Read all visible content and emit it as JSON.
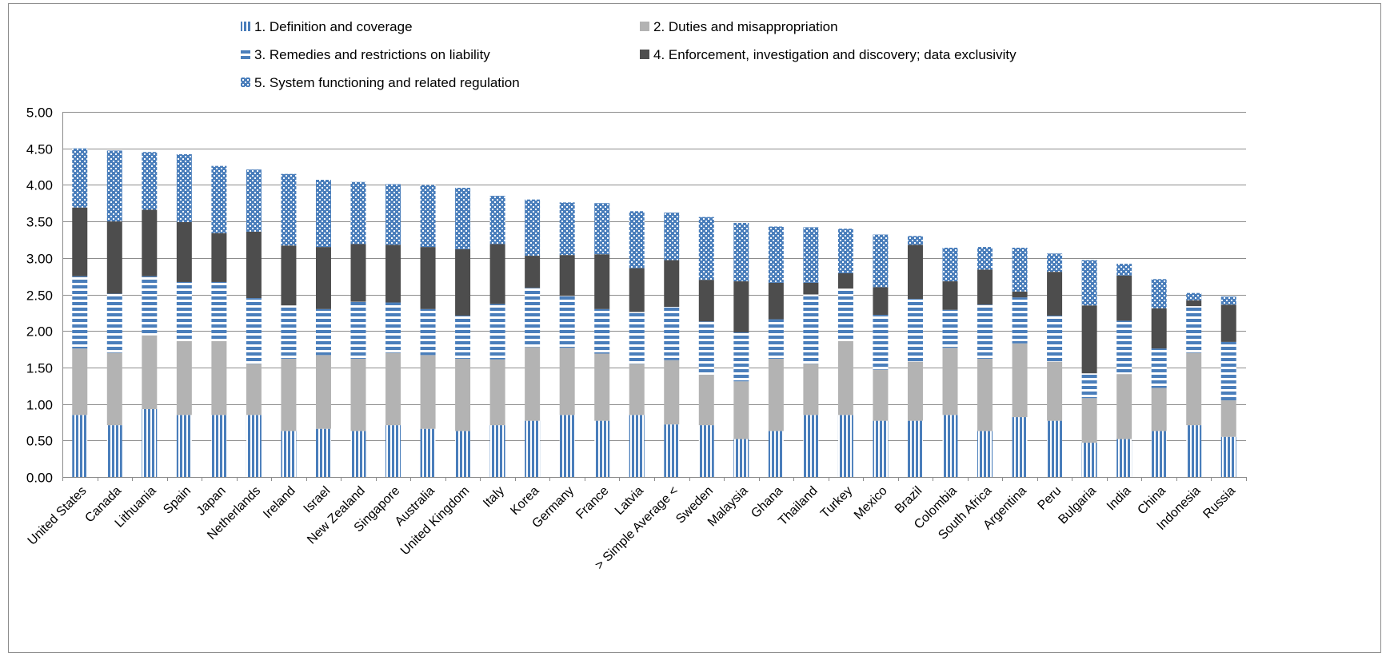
{
  "chart_data": {
    "type": "bar",
    "stacked": true,
    "ylim": [
      0,
      5
    ],
    "yticks": [
      "0.00",
      "0.50",
      "1.00",
      "1.50",
      "2.00",
      "2.50",
      "3.00",
      "3.50",
      "4.00",
      "4.50",
      "5.00"
    ],
    "grid": true,
    "legend_position": "top",
    "categories": [
      "United States",
      "Canada",
      "Lithuania",
      "Spain",
      "Japan",
      "Netherlands",
      "Ireland",
      "Israel",
      "New Zealand",
      "Singapore",
      "Australia",
      "United Kingdom",
      "Italy",
      "Korea",
      "Germany",
      "France",
      "Latvia",
      "> Simple Average <",
      "Sweden",
      "Malaysia",
      "Ghana",
      "Thailand",
      "Turkey",
      "Mexico",
      "Brazil",
      "Colombia",
      "South Africa",
      "Argentina",
      "Peru",
      "Bulgaria",
      "India",
      "China",
      "Indonesia",
      "Russia"
    ],
    "series": [
      {
        "name": "1. Definition and coverage",
        "color": "#4a7ebb",
        "pattern": "vertical",
        "values": [
          0.85,
          0.71,
          0.93,
          0.85,
          0.85,
          0.85,
          0.63,
          0.66,
          0.63,
          0.71,
          0.66,
          0.63,
          0.71,
          0.77,
          0.85,
          0.77,
          0.85,
          0.72,
          0.71,
          0.52,
          0.63,
          0.85,
          0.85,
          0.77,
          0.77,
          0.85,
          0.63,
          0.82,
          0.77,
          0.47,
          0.52,
          0.63,
          0.71,
          0.55
        ]
      },
      {
        "name": "2. Duties and misappropriation",
        "color": "#b3b3b3",
        "pattern": "solid",
        "values": [
          0.91,
          0.99,
          1.01,
          1.01,
          1.01,
          0.7,
          0.99,
          1.01,
          0.99,
          0.99,
          1.01,
          0.99,
          0.9,
          1.01,
          0.92,
          0.92,
          0.7,
          0.88,
          0.69,
          0.79,
          0.99,
          0.7,
          1.01,
          0.7,
          0.81,
          0.92,
          0.99,
          1.01,
          0.81,
          0.61,
          0.89,
          0.59,
          0.99,
          0.5
        ]
      },
      {
        "name": "3. Remedies and restrictions on liability",
        "color": "#4a7ebb",
        "pattern": "horizontal",
        "values": [
          0.99,
          0.81,
          0.81,
          0.81,
          0.81,
          0.9,
          0.73,
          0.63,
          0.78,
          0.69,
          0.63,
          0.59,
          0.76,
          0.81,
          0.71,
          0.61,
          0.71,
          0.73,
          0.73,
          0.67,
          0.54,
          0.95,
          0.72,
          0.75,
          0.86,
          0.52,
          0.74,
          0.63,
          0.63,
          0.34,
          0.73,
          0.54,
          0.64,
          0.8
        ]
      },
      {
        "name": "4. Enforcement, investigation and discovery; data exclusivity",
        "color": "#4d4d4d",
        "pattern": "solid",
        "values": [
          0.94,
          0.99,
          0.91,
          0.82,
          0.67,
          0.91,
          0.82,
          0.85,
          0.79,
          0.79,
          0.85,
          0.91,
          0.82,
          0.44,
          0.56,
          0.75,
          0.6,
          0.64,
          0.57,
          0.7,
          0.5,
          0.16,
          0.21,
          0.38,
          0.74,
          0.39,
          0.48,
          0.08,
          0.6,
          0.93,
          0.62,
          0.55,
          0.08,
          0.51
        ]
      },
      {
        "name": "5. System functioning and related regulation",
        "color": "#4a7ebb",
        "pattern": "dots",
        "values": [
          0.81,
          0.97,
          0.79,
          0.93,
          0.92,
          0.85,
          0.98,
          0.92,
          0.85,
          0.83,
          0.85,
          0.84,
          0.66,
          0.77,
          0.72,
          0.7,
          0.78,
          0.65,
          0.86,
          0.8,
          0.77,
          0.76,
          0.61,
          0.72,
          0.12,
          0.46,
          0.31,
          0.6,
          0.25,
          0.62,
          0.16,
          0.4,
          0.1,
          0.11
        ]
      }
    ]
  }
}
